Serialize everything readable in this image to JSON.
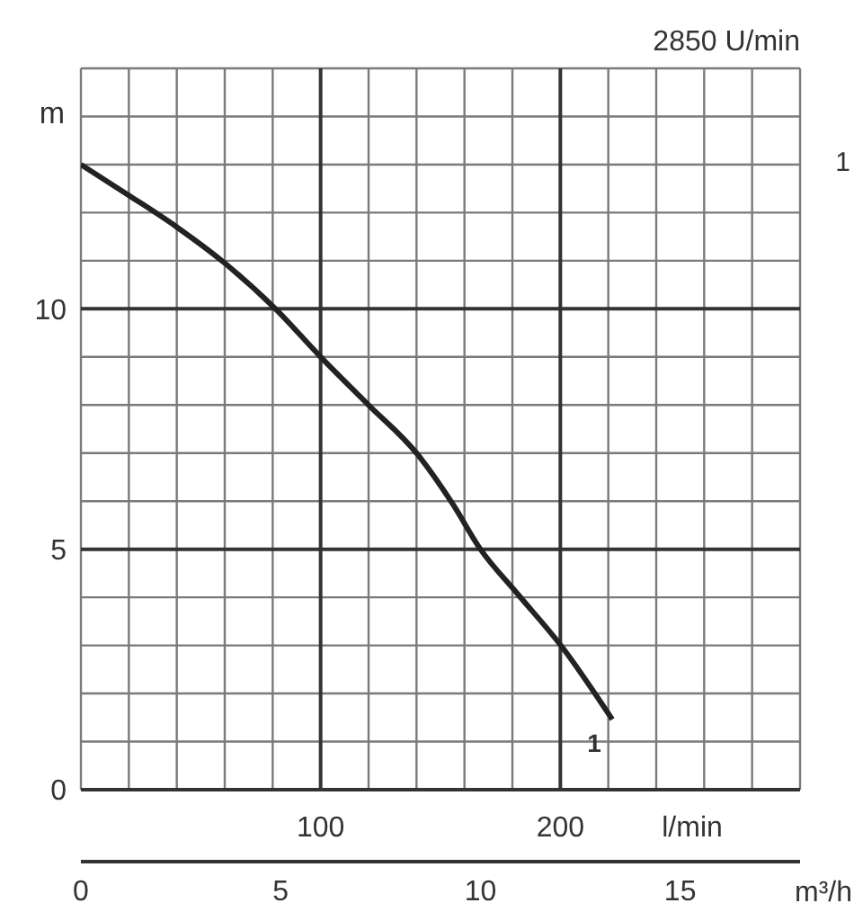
{
  "chart_data": {
    "type": "line",
    "title": "2850 U/min",
    "xlabel": "m³/h",
    "x2label": "l/min",
    "ylabel": "m",
    "x": [
      0,
      1.2,
      2.4,
      3.6,
      4.87,
      6,
      7.2,
      8.4,
      9.3,
      10,
      10.9,
      12.05,
      13.3
    ],
    "series": [
      {
        "color": "#222222",
        "values": [
          13.0,
          12.36,
          11.7,
          10.95,
          10.0,
          9.0,
          8.0,
          7.0,
          5.95,
          5.0,
          4.1,
          2.96,
          1.46
        ]
      }
    ],
    "xlim": [
      0,
      18
    ],
    "xticks": [
      0,
      5,
      10,
      15
    ],
    "x2lim": [
      0,
      300
    ],
    "x2ticks": [
      {
        "value": 0,
        "label": null
      },
      {
        "value": 20,
        "label": null
      },
      {
        "value": 40,
        "label": null
      },
      {
        "value": 60,
        "label": null
      },
      {
        "value": 80,
        "label": null
      },
      100,
      {
        "value": 120,
        "label": null
      },
      {
        "value": 140,
        "label": null
      },
      {
        "value": 160,
        "label": null
      },
      {
        "value": 180,
        "label": null
      },
      200,
      {
        "value": 220,
        "label": null
      },
      {
        "value": 240,
        "label": null
      },
      {
        "value": 260,
        "label": null
      },
      {
        "value": 280,
        "label": null
      },
      {
        "value": 300,
        "label": null
      }
    ],
    "ylim": [
      0,
      15
    ],
    "yticks": [
      0,
      {
        "value": 1,
        "label": null
      },
      {
        "value": 2,
        "label": null
      },
      {
        "value": 3,
        "label": null
      },
      {
        "value": 4,
        "label": null
      },
      5,
      {
        "value": 6,
        "label": null
      },
      {
        "value": 7,
        "label": null
      },
      {
        "value": 8,
        "label": null
      },
      {
        "value": 9,
        "label": null
      },
      10,
      {
        "value": 11,
        "label": null
      },
      {
        "value": 12,
        "label": null
      },
      {
        "value": 13,
        "label": null
      },
      {
        "value": 14,
        "label": null
      },
      {
        "value": 15,
        "label": null
      }
    ],
    "grid": true,
    "annotations": [
      "1",
      "1"
    ]
  }
}
